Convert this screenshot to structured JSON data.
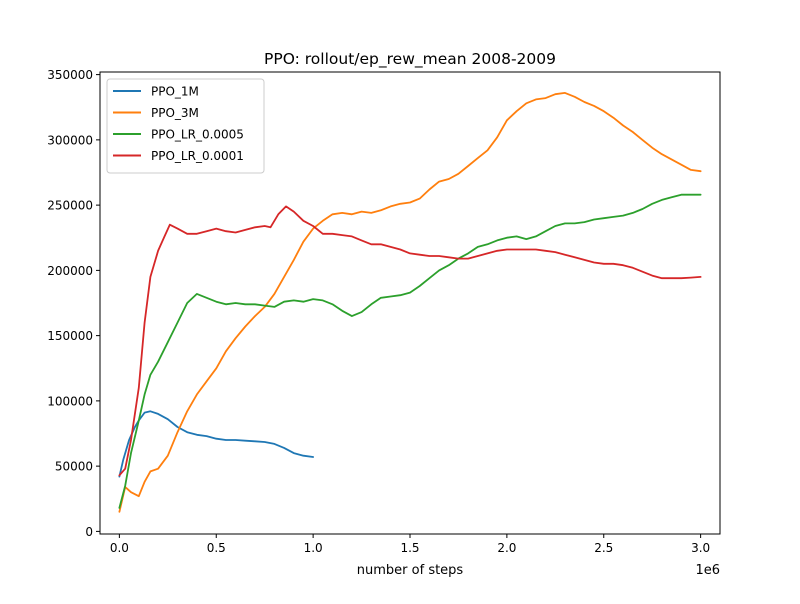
{
  "chart_data": {
    "type": "line",
    "title": "PPO: rollout/ep_rew_mean 2008-2009",
    "xlabel": "number of steps",
    "ylabel": "",
    "x_offset_label": "1e6",
    "xlim": [
      -0.1,
      3.1
    ],
    "ylim": [
      -2000,
      352000
    ],
    "xticks": [
      0.0,
      0.5,
      1.0,
      1.5,
      2.0,
      2.5,
      3.0
    ],
    "xtick_labels": [
      "0.0",
      "0.5",
      "1.0",
      "1.5",
      "2.0",
      "2.5",
      "3.0"
    ],
    "yticks": [
      0,
      50000,
      100000,
      150000,
      200000,
      250000,
      300000,
      350000
    ],
    "ytick_labels": [
      "0",
      "50000",
      "100000",
      "150000",
      "200000",
      "250000",
      "300000",
      "350000"
    ],
    "legend_position": "top-left",
    "grid": false,
    "series": [
      {
        "name": "PPO_1M",
        "color": "#1f77b4",
        "x": [
          0.0,
          0.02,
          0.05,
          0.08,
          0.1,
          0.13,
          0.16,
          0.2,
          0.25,
          0.3,
          0.35,
          0.4,
          0.45,
          0.5,
          0.55,
          0.6,
          0.65,
          0.7,
          0.75,
          0.8,
          0.85,
          0.9,
          0.95,
          1.0
        ],
        "y": [
          42000,
          55000,
          70000,
          80000,
          85000,
          91000,
          92000,
          90000,
          86000,
          80000,
          76000,
          74000,
          73000,
          71000,
          70000,
          70000,
          69500,
          69000,
          68500,
          67000,
          64000,
          60000,
          58000,
          57000
        ]
      },
      {
        "name": "PPO_3M",
        "color": "#ff7f0e",
        "x": [
          0.0,
          0.03,
          0.06,
          0.1,
          0.13,
          0.16,
          0.2,
          0.25,
          0.3,
          0.35,
          0.4,
          0.45,
          0.5,
          0.55,
          0.6,
          0.65,
          0.7,
          0.75,
          0.8,
          0.85,
          0.9,
          0.95,
          1.0,
          1.05,
          1.1,
          1.15,
          1.2,
          1.25,
          1.3,
          1.35,
          1.4,
          1.45,
          1.5,
          1.55,
          1.6,
          1.65,
          1.7,
          1.75,
          1.8,
          1.85,
          1.9,
          1.95,
          2.0,
          2.05,
          2.1,
          2.15,
          2.2,
          2.25,
          2.3,
          2.35,
          2.4,
          2.45,
          2.5,
          2.55,
          2.6,
          2.65,
          2.7,
          2.75,
          2.8,
          2.85,
          2.9,
          2.95,
          3.0
        ],
        "y": [
          15000,
          34000,
          30000,
          27000,
          38000,
          46000,
          48000,
          58000,
          76000,
          92000,
          105000,
          115000,
          125000,
          138000,
          148000,
          157000,
          165000,
          172000,
          182000,
          195000,
          208000,
          222000,
          232000,
          238000,
          243000,
          244000,
          243000,
          245000,
          244000,
          246000,
          249000,
          251000,
          252000,
          255000,
          262000,
          268000,
          270000,
          274000,
          280000,
          286000,
          292000,
          302000,
          315000,
          322000,
          328000,
          331000,
          332000,
          335000,
          336000,
          333000,
          329000,
          326000,
          322000,
          317000,
          311000,
          306000,
          300000,
          294000,
          289000,
          285000,
          281000,
          277000,
          276000
        ]
      },
      {
        "name": "PPO_LR_0.0005",
        "color": "#2ca02c",
        "x": [
          0.0,
          0.03,
          0.06,
          0.1,
          0.13,
          0.16,
          0.2,
          0.25,
          0.3,
          0.35,
          0.4,
          0.45,
          0.5,
          0.55,
          0.6,
          0.65,
          0.7,
          0.75,
          0.8,
          0.85,
          0.9,
          0.95,
          1.0,
          1.05,
          1.1,
          1.15,
          1.2,
          1.25,
          1.3,
          1.35,
          1.4,
          1.45,
          1.5,
          1.55,
          1.6,
          1.65,
          1.7,
          1.75,
          1.8,
          1.85,
          1.9,
          1.95,
          2.0,
          2.05,
          2.1,
          2.15,
          2.2,
          2.25,
          2.3,
          2.35,
          2.4,
          2.45,
          2.5,
          2.55,
          2.6,
          2.65,
          2.7,
          2.75,
          2.8,
          2.85,
          2.9,
          2.95,
          3.0
        ],
        "y": [
          18000,
          35000,
          60000,
          85000,
          105000,
          120000,
          130000,
          145000,
          160000,
          175000,
          182000,
          179000,
          176000,
          174000,
          175000,
          174000,
          174000,
          173000,
          172000,
          176000,
          177000,
          176000,
          178000,
          177000,
          174000,
          169000,
          165000,
          168000,
          174000,
          179000,
          180000,
          181000,
          183000,
          188000,
          194000,
          200000,
          204000,
          209000,
          213000,
          218000,
          220000,
          223000,
          225000,
          226000,
          224000,
          226000,
          230000,
          234000,
          236000,
          236000,
          237000,
          239000,
          240000,
          241000,
          242000,
          244000,
          247000,
          251000,
          254000,
          256000,
          258000,
          258000,
          258000
        ]
      },
      {
        "name": "PPO_LR_0.0001",
        "color": "#d62728",
        "x": [
          0.0,
          0.03,
          0.06,
          0.1,
          0.13,
          0.16,
          0.2,
          0.23,
          0.26,
          0.3,
          0.35,
          0.4,
          0.45,
          0.5,
          0.55,
          0.6,
          0.65,
          0.7,
          0.75,
          0.78,
          0.82,
          0.86,
          0.9,
          0.95,
          1.0,
          1.05,
          1.1,
          1.15,
          1.2,
          1.25,
          1.3,
          1.35,
          1.4,
          1.45,
          1.5,
          1.55,
          1.6,
          1.65,
          1.7,
          1.75,
          1.8,
          1.85,
          1.9,
          1.95,
          2.0,
          2.05,
          2.1,
          2.15,
          2.2,
          2.25,
          2.3,
          2.35,
          2.4,
          2.45,
          2.5,
          2.55,
          2.6,
          2.65,
          2.7,
          2.75,
          2.8,
          2.85,
          2.9,
          2.95,
          3.0
        ],
        "y": [
          43000,
          48000,
          70000,
          110000,
          160000,
          195000,
          215000,
          225000,
          235000,
          232000,
          228000,
          228000,
          230000,
          232000,
          230000,
          229000,
          231000,
          233000,
          234000,
          233000,
          243000,
          249000,
          245000,
          238000,
          234000,
          228000,
          228000,
          227000,
          226000,
          223000,
          220000,
          220000,
          218000,
          216000,
          213000,
          212000,
          211000,
          211000,
          210000,
          209000,
          209000,
          211000,
          213000,
          215000,
          216000,
          216000,
          216000,
          216000,
          215000,
          214000,
          212000,
          210000,
          208000,
          206000,
          205000,
          205000,
          204000,
          202000,
          199000,
          196000,
          194000,
          194000,
          194000,
          194500,
          195000
        ]
      }
    ]
  }
}
